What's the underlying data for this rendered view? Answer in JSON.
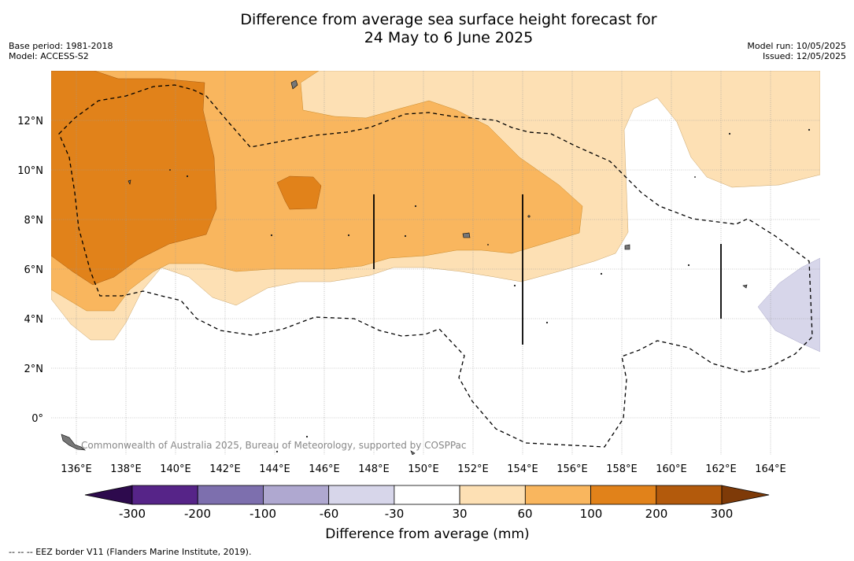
{
  "title": {
    "line1": "Difference from average sea surface height forecast for",
    "line2": "24 May to 6 June 2025"
  },
  "meta_left": {
    "base_period": "Base period: 1981-2018",
    "model": "Model: ACCESS-S2"
  },
  "meta_right": {
    "model_run": "Model run: 10/05/2025",
    "issued": "Issued: 12/05/2025"
  },
  "map": {
    "longitude_ticks": [
      "136°E",
      "138°E",
      "140°E",
      "142°E",
      "144°E",
      "146°E",
      "148°E",
      "150°E",
      "152°E",
      "154°E",
      "156°E",
      "158°E",
      "160°E",
      "162°E",
      "164°E"
    ],
    "latitude_ticks": [
      "12°N",
      "10°N",
      "8°N",
      "6°N",
      "4°N",
      "2°N",
      "0°"
    ],
    "lon_range": [
      135,
      166
    ],
    "lat_range": [
      -1.5,
      14
    ],
    "credit": "Commonwealth of Australia 2025, Bureau of Meteorology, supported by COSPPac"
  },
  "colorbar": {
    "title": "Difference from average (mm)",
    "tick_labels": [
      "-300",
      "-200",
      "-100",
      "-60",
      "-30",
      "30",
      "60",
      "100",
      "200",
      "300"
    ],
    "colors": [
      "#562488",
      "#7d6fae",
      "#afa8d0",
      "#d7d6ea",
      "#ffffff",
      "#fde0b4",
      "#f9b65e",
      "#e1821a",
      "#b35a0c"
    ],
    "extend_low_color": "#2d0a4d",
    "extend_high_color": "#7e3a08"
  },
  "colors": {
    "ocean_neutral": "#ffffff",
    "light_orange": "#fde0b4",
    "medium_orange": "#f9b65e",
    "dark_orange": "#e1821a",
    "light_purple": "#d7d6ea",
    "land": "#777777"
  },
  "footer": "--  --  -- EEZ border V11 (Flanders Marine Institute, 2019)."
}
